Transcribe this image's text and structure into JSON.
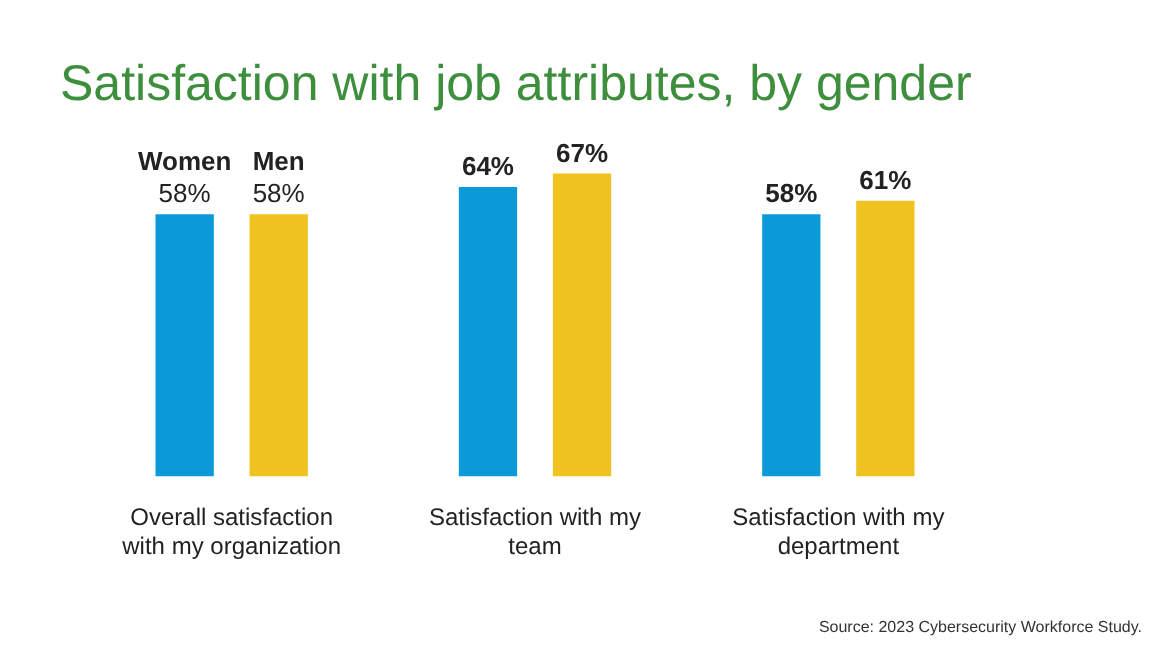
{
  "chart_data": {
    "type": "bar",
    "title": "Satisfaction with job attributes, by gender",
    "categories": [
      "Overall satisfaction with my organization",
      "Satisfaction with my team",
      "Satisfaction with my department"
    ],
    "series": [
      {
        "name": "Women",
        "color": "#0a9ad8",
        "values": [
          58,
          64,
          58
        ],
        "value_labels": [
          "58%",
          "64%",
          "58%"
        ]
      },
      {
        "name": "Men",
        "color": "#efc21f",
        "values": [
          58,
          67,
          61
        ],
        "value_labels": [
          "58%",
          "67%",
          "61%"
        ]
      }
    ],
    "grid": false,
    "annotations": [
      "Source: 2023 Cybersecurity Workforce Study."
    ]
  }
}
